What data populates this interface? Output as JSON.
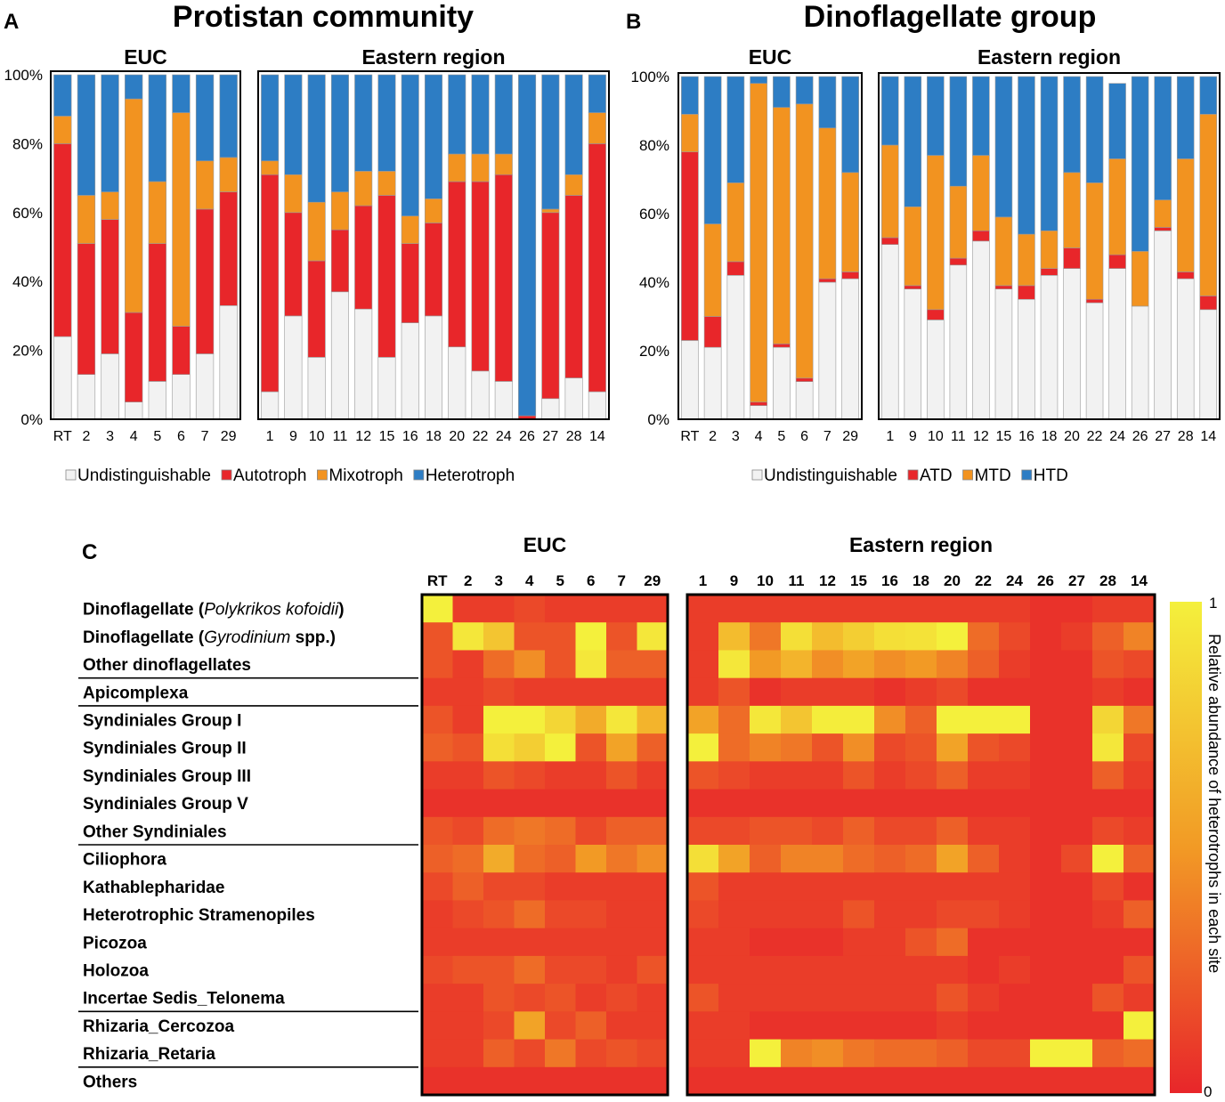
{
  "colors": {
    "undistinguishable": "#f2f2f2",
    "autotroph": "#e8262a",
    "mixotroph": "#f29320",
    "heterotroph": "#2d7dc4",
    "heat_low": "#e8262a",
    "heat_mid": "#f29a25",
    "heat_high": "#f4f03c"
  },
  "chart_data": [
    {
      "panel": "A",
      "type": "bar",
      "stacked": true,
      "title": "Protistan community",
      "groups": [
        {
          "name": "EUC",
          "categories": [
            "RT",
            "2",
            "3",
            "4",
            "5",
            "6",
            "7",
            "29"
          ]
        },
        {
          "name": "Eastern region",
          "categories": [
            "1",
            "9",
            "10",
            "11",
            "12",
            "15",
            "16",
            "18",
            "20",
            "22",
            "24",
            "26",
            "27",
            "28",
            "14"
          ]
        }
      ],
      "yticks": [
        "0%",
        "20%",
        "40%",
        "60%",
        "80%",
        "100%"
      ],
      "ylim": [
        0,
        100
      ],
      "series": [
        {
          "name": "Undistinguishable",
          "color": "#f2f2f2",
          "values": [
            24,
            13,
            19,
            5,
            11,
            13,
            19,
            33,
            8,
            30,
            18,
            37,
            32,
            18,
            28,
            30,
            21,
            14,
            11,
            0,
            6,
            12,
            8
          ]
        },
        {
          "name": "Autotroph",
          "color": "#e8262a",
          "values": [
            56,
            38,
            39,
            26,
            40,
            14,
            42,
            33,
            63,
            30,
            28,
            18,
            30,
            47,
            23,
            27,
            48,
            55,
            60,
            1,
            54,
            53,
            72
          ]
        },
        {
          "name": "Mixotroph",
          "color": "#f29320",
          "values": [
            8,
            14,
            8,
            62,
            18,
            62,
            14,
            10,
            4,
            11,
            17,
            11,
            10,
            7,
            8,
            7,
            8,
            8,
            6,
            0,
            1,
            6,
            9
          ]
        },
        {
          "name": "Heterotroph",
          "color": "#2d7dc4",
          "values": [
            12,
            35,
            34,
            7,
            31,
            11,
            25,
            24,
            25,
            29,
            37,
            34,
            28,
            28,
            41,
            36,
            23,
            23,
            23,
            99,
            39,
            29,
            11
          ]
        }
      ]
    },
    {
      "panel": "B",
      "type": "bar",
      "stacked": true,
      "title": "Dinoflagellate group",
      "groups": [
        {
          "name": "EUC",
          "categories": [
            "RT",
            "2",
            "3",
            "4",
            "5",
            "6",
            "7",
            "29"
          ]
        },
        {
          "name": "Eastern region",
          "categories": [
            "1",
            "9",
            "10",
            "11",
            "12",
            "15",
            "16",
            "18",
            "20",
            "22",
            "24",
            "26",
            "27",
            "28",
            "14"
          ]
        }
      ],
      "yticks": [
        "0%",
        "20%",
        "40%",
        "60%",
        "80%",
        "100%"
      ],
      "ylim": [
        0,
        100
      ],
      "series": [
        {
          "name": "Undistinguishable",
          "color": "#f2f2f2",
          "values": [
            23,
            21,
            42,
            4,
            21,
            11,
            40,
            41,
            51,
            38,
            29,
            45,
            52,
            38,
            35,
            42,
            44,
            34,
            44,
            33,
            55,
            41,
            32
          ]
        },
        {
          "name": "ATD",
          "color": "#e8262a",
          "values": [
            55,
            9,
            4,
            1,
            1,
            1,
            1,
            2,
            2,
            1,
            3,
            2,
            3,
            1,
            4,
            2,
            6,
            1,
            4,
            0,
            1,
            2,
            4
          ]
        },
        {
          "name": "MTD",
          "color": "#f29320",
          "values": [
            11,
            27,
            23,
            93,
            69,
            80,
            44,
            29,
            27,
            23,
            45,
            21,
            22,
            20,
            15,
            11,
            22,
            34,
            28,
            16,
            8,
            33,
            53
          ]
        },
        {
          "name": "HTD",
          "color": "#2d7dc4",
          "values": [
            11,
            43,
            31,
            2,
            9,
            8,
            15,
            28,
            20,
            38,
            23,
            32,
            23,
            41,
            46,
            45,
            28,
            31,
            22,
            51,
            36,
            24,
            11
          ]
        }
      ]
    },
    {
      "panel": "C",
      "type": "heatmap",
      "groups": [
        {
          "name": "EUC",
          "columns": [
            "RT",
            "2",
            "3",
            "4",
            "5",
            "6",
            "7",
            "29"
          ]
        },
        {
          "name": "Eastern region",
          "columns": [
            "1",
            "9",
            "10",
            "11",
            "12",
            "15",
            "16",
            "18",
            "20",
            "22",
            "24",
            "26",
            "27",
            "28",
            "14"
          ]
        }
      ],
      "row_labels": [
        {
          "pre": "Dinoflagellate (",
          "italic": "Polykrikos kofoidii",
          "post": ")"
        },
        {
          "pre": "Dinoflagellate (",
          "italic": "Gyrodinium",
          "post": " spp.)"
        },
        {
          "pre": "Other dinoflagellates",
          "italic": "",
          "post": ""
        },
        {
          "pre": "Apicomplexa",
          "italic": "",
          "post": ""
        },
        {
          "pre": "Syndiniales Group I",
          "italic": "",
          "post": ""
        },
        {
          "pre": "Syndiniales Group II",
          "italic": "",
          "post": ""
        },
        {
          "pre": "Syndiniales Group III",
          "italic": "",
          "post": ""
        },
        {
          "pre": "Syndiniales Group V",
          "italic": "",
          "post": ""
        },
        {
          "pre": "Other Syndiniales",
          "italic": "",
          "post": ""
        },
        {
          "pre": "Ciliophora",
          "italic": "",
          "post": ""
        },
        {
          "pre": "Kathablepharidae",
          "italic": "",
          "post": ""
        },
        {
          "pre": "Heterotrophic Stramenopiles",
          "italic": "",
          "post": ""
        },
        {
          "pre": "Picozoa",
          "italic": "",
          "post": ""
        },
        {
          "pre": "Holozoa",
          "italic": "",
          "post": ""
        },
        {
          "pre": "Incertae Sedis_Telonema",
          "italic": "",
          "post": ""
        },
        {
          "pre": "Rhizaria_Cercozoa",
          "italic": "",
          "post": ""
        },
        {
          "pre": "Rhizaria_Retaria",
          "italic": "",
          "post": ""
        },
        {
          "pre": "Others",
          "italic": "",
          "post": ""
        }
      ],
      "row_separators_after": [
        2,
        3,
        8,
        14,
        16
      ],
      "values": [
        [
          1.0,
          0.1,
          0.1,
          0.15,
          0.1,
          0.1,
          0.1,
          0.1,
          0.1,
          0.1,
          0.1,
          0.1,
          0.1,
          0.1,
          0.1,
          0.1,
          0.1,
          0.1,
          0.1,
          0.05,
          0.05,
          0.1,
          0.1
        ],
        [
          0.2,
          0.95,
          0.75,
          0.2,
          0.2,
          1.0,
          0.2,
          0.95,
          0.1,
          0.7,
          0.35,
          0.9,
          0.7,
          0.8,
          0.9,
          0.92,
          1.0,
          0.3,
          0.15,
          0.05,
          0.1,
          0.25,
          0.4
        ],
        [
          0.2,
          0.1,
          0.3,
          0.45,
          0.2,
          0.95,
          0.25,
          0.25,
          0.1,
          0.95,
          0.5,
          0.65,
          0.45,
          0.55,
          0.45,
          0.5,
          0.4,
          0.25,
          0.1,
          0.05,
          0.05,
          0.2,
          0.15
        ],
        [
          0.1,
          0.1,
          0.15,
          0.1,
          0.1,
          0.1,
          0.1,
          0.1,
          0.1,
          0.2,
          0.05,
          0.1,
          0.1,
          0.1,
          0.05,
          0.1,
          0.15,
          0.05,
          0.05,
          0.05,
          0.05,
          0.1,
          0.05
        ],
        [
          0.2,
          0.1,
          1.0,
          1.0,
          0.85,
          0.6,
          0.95,
          0.65,
          0.55,
          0.3,
          0.95,
          0.75,
          0.98,
          0.98,
          0.45,
          0.25,
          1.0,
          1.0,
          1.0,
          0.05,
          0.05,
          0.85,
          0.35
        ],
        [
          0.25,
          0.2,
          0.9,
          0.8,
          1.0,
          0.2,
          0.55,
          0.25,
          1.0,
          0.3,
          0.4,
          0.35,
          0.2,
          0.45,
          0.15,
          0.2,
          0.55,
          0.2,
          0.15,
          0.05,
          0.05,
          0.95,
          0.15
        ],
        [
          0.1,
          0.1,
          0.2,
          0.15,
          0.1,
          0.1,
          0.2,
          0.1,
          0.2,
          0.15,
          0.1,
          0.1,
          0.1,
          0.2,
          0.1,
          0.15,
          0.25,
          0.1,
          0.1,
          0.05,
          0.05,
          0.25,
          0.1
        ],
        [
          0.05,
          0.05,
          0.05,
          0.05,
          0.05,
          0.05,
          0.05,
          0.05,
          0.05,
          0.05,
          0.05,
          0.05,
          0.05,
          0.05,
          0.05,
          0.05,
          0.05,
          0.05,
          0.05,
          0.05,
          0.05,
          0.05,
          0.05
        ],
        [
          0.2,
          0.15,
          0.3,
          0.35,
          0.3,
          0.15,
          0.25,
          0.25,
          0.15,
          0.15,
          0.2,
          0.2,
          0.15,
          0.25,
          0.15,
          0.15,
          0.25,
          0.1,
          0.1,
          0.05,
          0.05,
          0.15,
          0.1
        ],
        [
          0.25,
          0.3,
          0.6,
          0.3,
          0.25,
          0.5,
          0.35,
          0.45,
          0.9,
          0.55,
          0.25,
          0.4,
          0.4,
          0.3,
          0.25,
          0.3,
          0.55,
          0.25,
          0.1,
          0.05,
          0.15,
          1.0,
          0.25
        ],
        [
          0.15,
          0.25,
          0.15,
          0.15,
          0.1,
          0.1,
          0.1,
          0.1,
          0.2,
          0.1,
          0.1,
          0.1,
          0.1,
          0.1,
          0.1,
          0.1,
          0.1,
          0.1,
          0.1,
          0.05,
          0.05,
          0.15,
          0.05
        ],
        [
          0.1,
          0.15,
          0.2,
          0.3,
          0.15,
          0.15,
          0.1,
          0.1,
          0.15,
          0.1,
          0.1,
          0.1,
          0.1,
          0.2,
          0.1,
          0.1,
          0.15,
          0.15,
          0.1,
          0.05,
          0.05,
          0.1,
          0.25
        ],
        [
          0.1,
          0.1,
          0.1,
          0.1,
          0.1,
          0.1,
          0.1,
          0.1,
          0.1,
          0.1,
          0.05,
          0.05,
          0.05,
          0.1,
          0.1,
          0.2,
          0.3,
          0.05,
          0.05,
          0.05,
          0.05,
          0.05,
          0.05
        ],
        [
          0.15,
          0.2,
          0.2,
          0.3,
          0.15,
          0.15,
          0.1,
          0.2,
          0.1,
          0.1,
          0.1,
          0.1,
          0.1,
          0.1,
          0.1,
          0.1,
          0.1,
          0.05,
          0.1,
          0.05,
          0.05,
          0.05,
          0.2
        ],
        [
          0.1,
          0.1,
          0.2,
          0.15,
          0.2,
          0.1,
          0.15,
          0.1,
          0.2,
          0.1,
          0.1,
          0.1,
          0.1,
          0.1,
          0.1,
          0.1,
          0.2,
          0.1,
          0.05,
          0.05,
          0.05,
          0.2,
          0.1
        ],
        [
          0.1,
          0.1,
          0.15,
          0.55,
          0.15,
          0.25,
          0.1,
          0.1,
          0.1,
          0.1,
          0.05,
          0.05,
          0.05,
          0.05,
          0.05,
          0.05,
          0.1,
          0.05,
          0.05,
          0.05,
          0.05,
          0.05,
          1.0
        ],
        [
          0.1,
          0.1,
          0.25,
          0.15,
          0.35,
          0.15,
          0.2,
          0.15,
          0.1,
          0.1,
          1.0,
          0.4,
          0.45,
          0.35,
          0.3,
          0.3,
          0.25,
          0.15,
          0.15,
          1.0,
          1.0,
          0.25,
          0.3
        ],
        [
          0.05,
          0.05,
          0.05,
          0.05,
          0.05,
          0.05,
          0.05,
          0.05,
          0.05,
          0.05,
          0.05,
          0.05,
          0.05,
          0.05,
          0.05,
          0.05,
          0.05,
          0.05,
          0.05,
          0.05,
          0.05,
          0.05,
          0.05
        ]
      ],
      "colorbar": {
        "min_label": "0",
        "max_label": "1",
        "label": "Relative abundance of heterotrophs in each site"
      }
    }
  ]
}
